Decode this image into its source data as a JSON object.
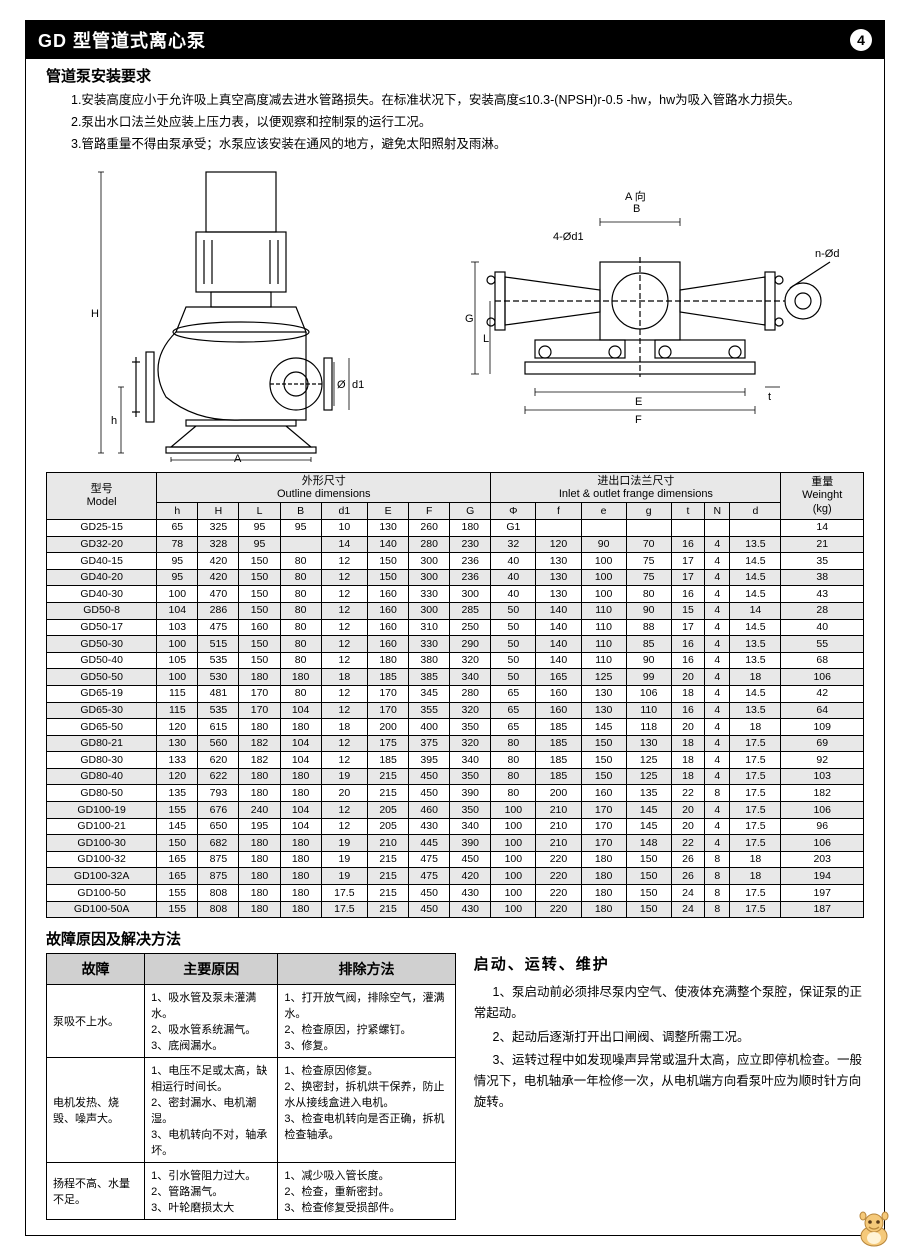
{
  "header": {
    "title": "GD 型管道式离心泵",
    "page": "4"
  },
  "install": {
    "title": "管道泵安装要求",
    "p1": "1.安装高度应小于允许吸上真空高度减去进水管路损失。在标准状况下，安装高度≤10.3-(NPSH)r-0.5 -hw，hw为吸入管路水力损失。",
    "p2": "2.泵出水口法兰处应装上压力表，以便观察和控制泵的运行工况。",
    "p3": "3.管路重量不得由泵承受；水泵应该安装在通风的地方，避免太阳照射及雨淋。"
  },
  "diagram_labels": {
    "H": "H",
    "h": "h",
    "L": "L",
    "A": "A",
    "B": "B",
    "d1": "d1",
    "phi": "Ø",
    "E": "E",
    "F": "F",
    "G": "G",
    "t": "t",
    "A_dir": "A 向",
    "fourd": "4-Ød1",
    "nod": "n-Ød"
  },
  "spec": {
    "model_hdr": "型号\nModel",
    "outline_hdr": "外形尺寸\nOutline dimensions",
    "flange_hdr": "进出口法兰尺寸\nInlet & outlet frange dimensions",
    "weight_hdr": "重量\nWeinght\n(kg)",
    "cols": [
      "h",
      "H",
      "L",
      "B",
      "d1",
      "E",
      "F",
      "G",
      "Φ",
      "f",
      "e",
      "g",
      "t",
      "N",
      "d"
    ],
    "rows": [
      [
        "GD25-15",
        "65",
        "325",
        "95",
        "95",
        "10",
        "130",
        "260",
        "180",
        "G1",
        "",
        "",
        "",
        "",
        "",
        "",
        "14"
      ],
      [
        "GD32-20",
        "78",
        "328",
        "95",
        "",
        "14",
        "140",
        "280",
        "230",
        "32",
        "120",
        "90",
        "70",
        "16",
        "4",
        "13.5",
        "21"
      ],
      [
        "GD40-15",
        "95",
        "420",
        "150",
        "80",
        "12",
        "150",
        "300",
        "236",
        "40",
        "130",
        "100",
        "75",
        "17",
        "4",
        "14.5",
        "35"
      ],
      [
        "GD40-20",
        "95",
        "420",
        "150",
        "80",
        "12",
        "150",
        "300",
        "236",
        "40",
        "130",
        "100",
        "75",
        "17",
        "4",
        "14.5",
        "38"
      ],
      [
        "GD40-30",
        "100",
        "470",
        "150",
        "80",
        "12",
        "160",
        "330",
        "300",
        "40",
        "130",
        "100",
        "80",
        "16",
        "4",
        "14.5",
        "43"
      ],
      [
        "GD50-8",
        "104",
        "286",
        "150",
        "80",
        "12",
        "160",
        "300",
        "285",
        "50",
        "140",
        "110",
        "90",
        "15",
        "4",
        "14",
        "28"
      ],
      [
        "GD50-17",
        "103",
        "475",
        "160",
        "80",
        "12",
        "160",
        "310",
        "250",
        "50",
        "140",
        "110",
        "88",
        "17",
        "4",
        "14.5",
        "40"
      ],
      [
        "GD50-30",
        "100",
        "515",
        "150",
        "80",
        "12",
        "160",
        "330",
        "290",
        "50",
        "140",
        "110",
        "85",
        "16",
        "4",
        "13.5",
        "55"
      ],
      [
        "GD50-40",
        "105",
        "535",
        "150",
        "80",
        "12",
        "180",
        "380",
        "320",
        "50",
        "140",
        "110",
        "90",
        "16",
        "4",
        "13.5",
        "68"
      ],
      [
        "GD50-50",
        "100",
        "530",
        "180",
        "180",
        "18",
        "185",
        "385",
        "340",
        "50",
        "165",
        "125",
        "99",
        "20",
        "4",
        "18",
        "106"
      ],
      [
        "GD65-19",
        "115",
        "481",
        "170",
        "80",
        "12",
        "170",
        "345",
        "280",
        "65",
        "160",
        "130",
        "106",
        "18",
        "4",
        "14.5",
        "42"
      ],
      [
        "GD65-30",
        "115",
        "535",
        "170",
        "104",
        "12",
        "170",
        "355",
        "320",
        "65",
        "160",
        "130",
        "110",
        "16",
        "4",
        "13.5",
        "64"
      ],
      [
        "GD65-50",
        "120",
        "615",
        "180",
        "180",
        "18",
        "200",
        "400",
        "350",
        "65",
        "185",
        "145",
        "118",
        "20",
        "4",
        "18",
        "109"
      ],
      [
        "GD80-21",
        "130",
        "560",
        "182",
        "104",
        "12",
        "175",
        "375",
        "320",
        "80",
        "185",
        "150",
        "130",
        "18",
        "4",
        "17.5",
        "69"
      ],
      [
        "GD80-30",
        "133",
        "620",
        "182",
        "104",
        "12",
        "185",
        "395",
        "340",
        "80",
        "185",
        "150",
        "125",
        "18",
        "4",
        "17.5",
        "92"
      ],
      [
        "GD80-40",
        "120",
        "622",
        "180",
        "180",
        "19",
        "215",
        "450",
        "350",
        "80",
        "185",
        "150",
        "125",
        "18",
        "4",
        "17.5",
        "103"
      ],
      [
        "GD80-50",
        "135",
        "793",
        "180",
        "180",
        "20",
        "215",
        "450",
        "390",
        "80",
        "200",
        "160",
        "135",
        "22",
        "8",
        "17.5",
        "182"
      ],
      [
        "GD100-19",
        "155",
        "676",
        "240",
        "104",
        "12",
        "205",
        "460",
        "350",
        "100",
        "210",
        "170",
        "145",
        "20",
        "4",
        "17.5",
        "106"
      ],
      [
        "GD100-21",
        "145",
        "650",
        "195",
        "104",
        "12",
        "205",
        "430",
        "340",
        "100",
        "210",
        "170",
        "145",
        "20",
        "4",
        "17.5",
        "96"
      ],
      [
        "GD100-30",
        "150",
        "682",
        "180",
        "180",
        "19",
        "210",
        "445",
        "390",
        "100",
        "210",
        "170",
        "148",
        "22",
        "4",
        "17.5",
        "106"
      ],
      [
        "GD100-32",
        "165",
        "875",
        "180",
        "180",
        "19",
        "215",
        "475",
        "450",
        "100",
        "220",
        "180",
        "150",
        "26",
        "8",
        "18",
        "203"
      ],
      [
        "GD100-32A",
        "165",
        "875",
        "180",
        "180",
        "19",
        "215",
        "475",
        "420",
        "100",
        "220",
        "180",
        "150",
        "26",
        "8",
        "18",
        "194"
      ],
      [
        "GD100-50",
        "155",
        "808",
        "180",
        "180",
        "17.5",
        "215",
        "450",
        "430",
        "100",
        "220",
        "180",
        "150",
        "24",
        "8",
        "17.5",
        "197"
      ],
      [
        "GD100-50A",
        "155",
        "808",
        "180",
        "180",
        "17.5",
        "215",
        "450",
        "430",
        "100",
        "220",
        "180",
        "150",
        "24",
        "8",
        "17.5",
        "187"
      ]
    ],
    "alt_rows": [
      1,
      3,
      5,
      7,
      9,
      11,
      13,
      15,
      17,
      19,
      21,
      23
    ]
  },
  "fault": {
    "title": "故障原因及解决方法",
    "headers": [
      "故障",
      "主要原因",
      "排除方法"
    ],
    "rows": [
      [
        "泵吸不上水。",
        "1、吸水管及泵未灌满水。\n2、吸水管系统漏气。\n3、底阀漏水。",
        "1、打开放气阀，排除空气，灌满水。\n2、检查原因，拧紧螺钉。\n3、修复。"
      ],
      [
        "电机发热、烧毁、噪声大。",
        "1、电压不足或太高，缺相运行时间长。\n2、密封漏水、电机潮湿。\n3、电机转向不对，轴承坏。",
        "1、检查原因修复。\n2、换密封，拆机烘干保养，防止水从接线盒进入电机。\n3、检查电机转向是否正确，拆机检查轴承。"
      ],
      [
        "扬程不高、水量不足。",
        "1、引水管阻力过大。\n2、管路漏气。\n3、叶轮磨损太大",
        "1、减少吸入管长度。\n2、检查，重新密封。\n3、检查修复受损部件。"
      ]
    ]
  },
  "maint": {
    "title": "启动、运转、维护",
    "p1": "1、泵启动前必须排尽泵内空气、使液体充满整个泵腔，保证泵的正常起动。",
    "p2": "2、起动后逐渐打开出口闸阀、调整所需工况。",
    "p3": "3、运转过程中如发现噪声异常或温升太高，应立即停机检查。一般情况下，电机轴承一年检修一次，从电机端方向看泵叶应为顺时针方向旋转。"
  },
  "colors": {
    "header_bg": "#000000",
    "header_fg": "#ffffff",
    "th_bg": "#e8e8e8",
    "alt_bg": "#e8e8e8",
    "fault_th_bg": "#d0d0d0",
    "border": "#000000"
  }
}
